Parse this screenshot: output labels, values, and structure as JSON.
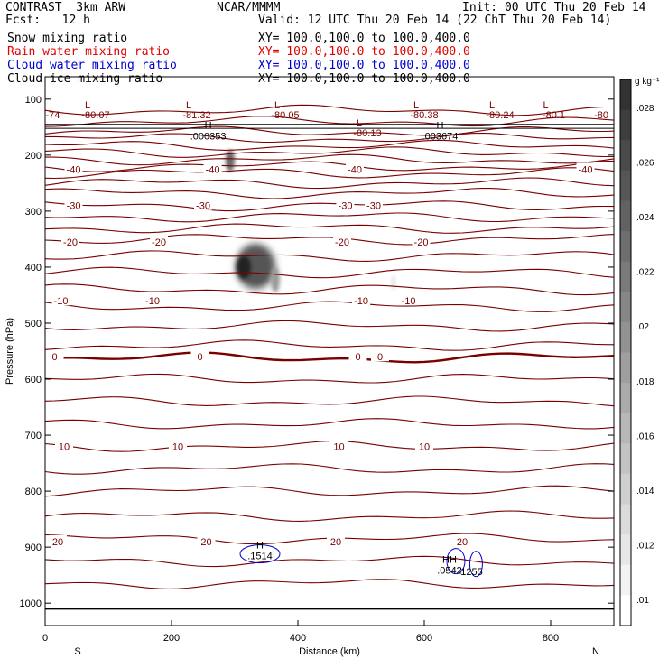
{
  "header": {
    "model": "CONTRAST  3km ARW",
    "center": "NCAR/MMMM",
    "init": "Init: 00 UTC Thu 20 Feb 14",
    "fcst": "Fcst:   12 h",
    "valid": "Valid: 12 UTC Thu 20 Feb 14 (22 ChT Thu 20 Feb 14)"
  },
  "fields": [
    {
      "label": "Snow mixing ratio",
      "xy": "XY= 100.0,100.0 to 100.0,400.0",
      "color": "#000000"
    },
    {
      "label": "Rain water mixing ratio",
      "xy": "XY= 100.0,100.0 to 100.0,400.0",
      "color": "#e00000"
    },
    {
      "label": "Cloud water mixing ratio",
      "xy": "XY= 100.0,100.0 to 100.0,400.0",
      "color": "#0000d0"
    },
    {
      "label": "Cloud ice mixing ratio",
      "xy": "XY= 100.0,100.0 to 100.0,400.0",
      "color": "#000000"
    }
  ],
  "chart_data": {
    "type": "cross-section contour",
    "xlabel": "Distance (km)",
    "ylabel": "Pressure (hPa)",
    "xlim": [
      0,
      900
    ],
    "ylim": [
      1040,
      60
    ],
    "x_ticks": [
      0,
      200,
      400,
      600,
      800
    ],
    "y_ticks": [
      100,
      200,
      300,
      400,
      500,
      600,
      700,
      800,
      900,
      1000
    ],
    "left_end": "S",
    "right_end": "N",
    "colorbar": {
      "unit": "g kg⁻¹",
      "levels": [
        ".01",
        ".012",
        ".014",
        ".016",
        ".018",
        ".02",
        ".022",
        ".024",
        ".026",
        ".028"
      ]
    },
    "temperature_levels": [
      {
        "value": "-40",
        "pressure": 225
      },
      {
        "value": "-30",
        "pressure": 290
      },
      {
        "value": "-20",
        "pressure": 355
      },
      {
        "value": "-10",
        "pressure": 460
      },
      {
        "value": "0",
        "pressure": 560
      },
      {
        "value": "10",
        "pressure": 720
      },
      {
        "value": "20",
        "pressure": 890
      }
    ],
    "tropopause_minima": [
      "-74",
      "-80.07",
      "-81.32",
      "-80.05",
      "-80.13",
      "-80.38",
      "-80.24",
      "-80.1",
      "-80"
    ],
    "highs": [
      {
        "label": "H",
        "value": ".000353",
        "x": 258,
        "pressure": 162
      },
      {
        "label": "H",
        "value": ".003674",
        "x": 625,
        "pressure": 162
      },
      {
        "label": "H",
        "value": ".1514",
        "x": 340,
        "pressure": 912
      },
      {
        "label": "HH",
        "value": ".0542",
        "x": 640,
        "pressure": 938
      },
      {
        "label": "",
        "value": "1255",
        "x": 675,
        "pressure": 940
      }
    ]
  }
}
